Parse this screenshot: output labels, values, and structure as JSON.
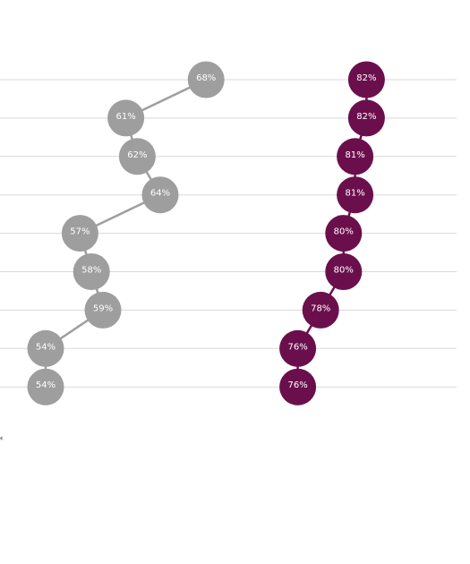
{
  "chart_data": {
    "type": "scatter",
    "title": "",
    "xlabel": "",
    "ylabel": "",
    "rows": 9,
    "grid": true,
    "series": [
      {
        "color": "#9e9e9e",
        "values": [
          68,
          61,
          62,
          64,
          57,
          58,
          59,
          54,
          54
        ],
        "labels": [
          "68%",
          "61%",
          "62%",
          "64%",
          "57%",
          "58%",
          "59%",
          "54%",
          "54%"
        ]
      },
      {
        "color": "#6b0f4c",
        "values": [
          82,
          82,
          81,
          81,
          80,
          80,
          78,
          76,
          76
        ],
        "labels": [
          "82%",
          "82%",
          "81%",
          "81%",
          "80%",
          "80%",
          "78%",
          "76%",
          "76%"
        ]
      }
    ],
    "colors": {
      "gridline": "#d9d9d9",
      "label_text": "#ffffff"
    }
  },
  "footnote_mark": "*"
}
